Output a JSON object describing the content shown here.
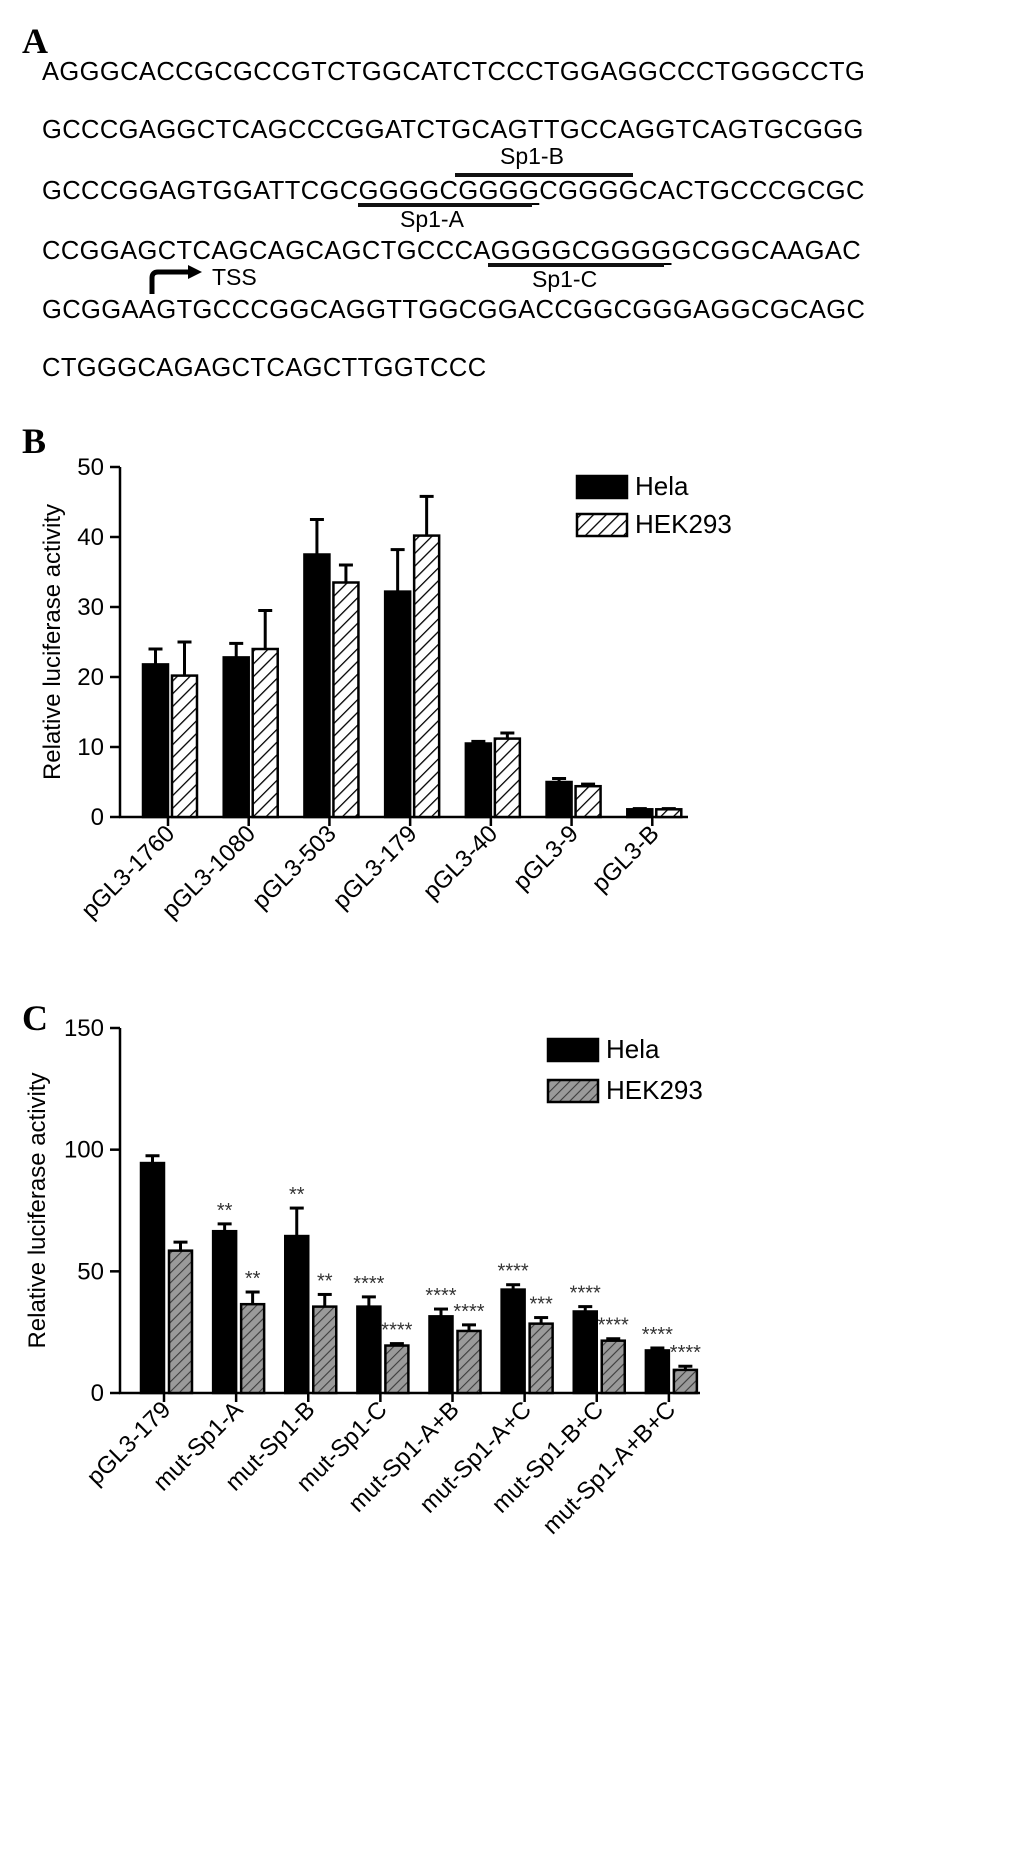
{
  "panels": {
    "a": "A",
    "b": "B",
    "c": "C"
  },
  "sequence": {
    "lines": [
      "AGGGCACCGCGCCGTCTGGCATCTCCCTGGAGGCCCTGGGCCTG",
      "GCCCGAGGCTCAGCCCGGATCTGCAGTTGCCAGGTCAGTGCGGG",
      "GCCCGGAGTGGATTCGCGGGGCGGGGCGGGGCACTGCCCGCGC",
      "CCGGAGCTCAGCAGCAGCTGCCCAGGGGCGGGGGCGGCAAGAC",
      "GCGGAAGTGCCCGGCAGGTTGGCGGACCGGCGGGAGGCGCAGC",
      "CTGGGCAGAGCTCAGCTTGGTCCC"
    ],
    "line3_parts": [
      "GCCCGGAGTGGATTCGC",
      "GGGGCGGGG",
      "CGGGGCACTGCCCGCGC"
    ],
    "line4_parts": [
      "CCGGAGCTCAGCAGCAGCTGCCCA",
      "GGGGCGGGG",
      "GCGGCAAGAC"
    ],
    "sites": {
      "sp1_b": "Sp1-B",
      "sp1_a": "Sp1-A",
      "sp1_c": "Sp1-C",
      "tss": "TSS"
    }
  },
  "chart_data": [
    {
      "type": "bar",
      "ylabel": "Relative luciferase activity",
      "ylim": [
        0,
        50
      ],
      "yticks": [
        0,
        10,
        20,
        30,
        40,
        50
      ],
      "categories": [
        "pGL3-1760",
        "pGL3-1080",
        "pGL3-503",
        "pGL3-179",
        "pGL3-40",
        "pGL3-9",
        "pGL3-B"
      ],
      "series": [
        {
          "name": "Hela",
          "values": [
            21.8,
            22.8,
            37.5,
            32.2,
            10.5,
            5.0,
            1.1
          ],
          "errors": [
            2.2,
            2.0,
            5.0,
            6.0,
            0.3,
            0.5,
            0.1
          ],
          "fill": "#000000",
          "pattern": "solid"
        },
        {
          "name": "HEK293",
          "values": [
            20.2,
            24.0,
            33.5,
            40.2,
            11.2,
            4.4,
            1.1
          ],
          "errors": [
            4.8,
            5.5,
            2.5,
            5.6,
            0.8,
            0.3,
            0.1
          ],
          "fill": "#ffffff",
          "pattern": "hatch-light"
        }
      ],
      "legend_position": "top-right",
      "grid": false
    },
    {
      "type": "bar",
      "ylabel": "Relative luciferase activity",
      "ylim": [
        0,
        150
      ],
      "yticks": [
        0,
        50,
        100,
        150
      ],
      "categories": [
        "pGL3-179",
        "mut-Sp1-A",
        "mut-Sp1-B",
        "mut-Sp1-C",
        "mut-Sp1-A+B",
        "mut-Sp1-A+C",
        "mut-Sp1-B+C",
        "mut-Sp1-A+B+C"
      ],
      "series": [
        {
          "name": "Hela",
          "values": [
            94.5,
            66.5,
            64.5,
            35.5,
            31.5,
            42.5,
            33.5,
            17.5
          ],
          "errors": [
            3.0,
            3.0,
            11.5,
            4.0,
            3.0,
            2.0,
            2.0,
            1.0
          ],
          "annotations": [
            "",
            "**",
            "**",
            "****",
            "****",
            "****",
            "****",
            "****"
          ],
          "fill": "#000000",
          "pattern": "solid"
        },
        {
          "name": "HEK293",
          "values": [
            58.5,
            36.5,
            35.5,
            19.5,
            25.5,
            28.5,
            21.5,
            9.5
          ],
          "errors": [
            3.5,
            5.0,
            5.0,
            0.8,
            2.5,
            2.5,
            0.8,
            1.5
          ],
          "annotations": [
            "",
            "**",
            "**",
            "****",
            "****",
            "***",
            "****",
            "****"
          ],
          "fill": "#999999",
          "pattern": "hatch-dark"
        }
      ],
      "legend_position": "top-right",
      "grid": false
    }
  ]
}
